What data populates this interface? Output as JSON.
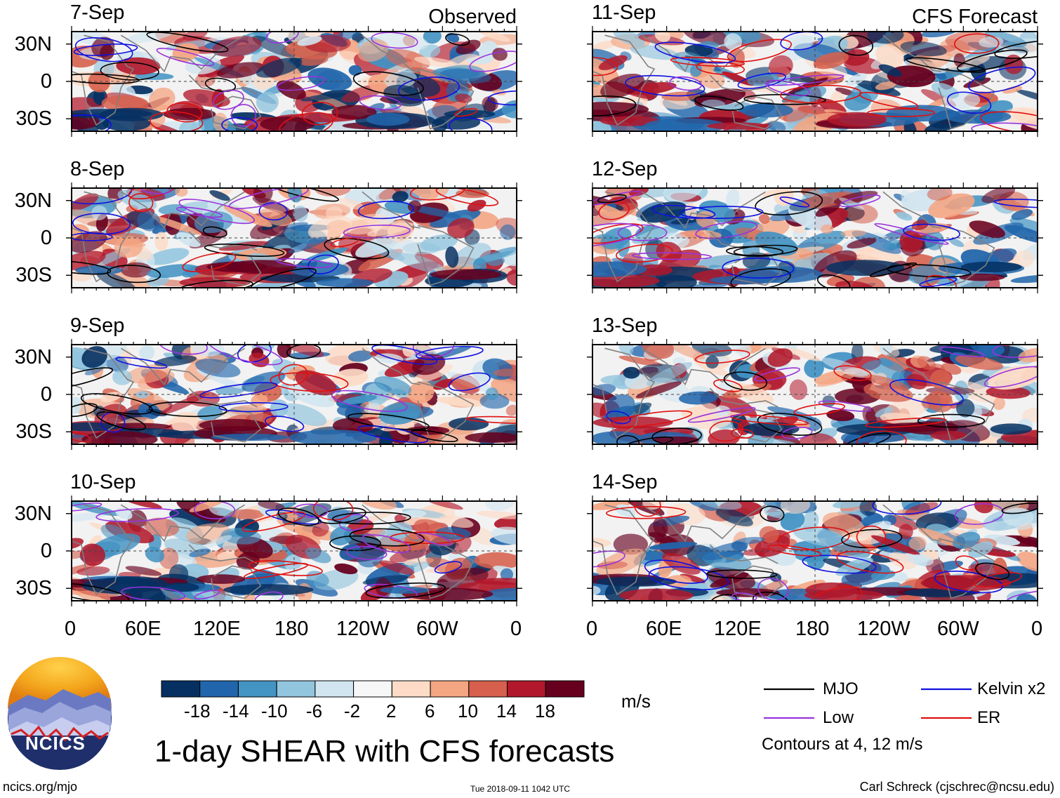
{
  "chart_data": {
    "type": "heatmap",
    "title": "1-day SHEAR with CFS forecasts",
    "variable": "SHEAR",
    "unit_label": "m/s",
    "observed_tag": "Observed",
    "forecast_tag": "CFS Forecast",
    "observed_panels": [
      "7-Sep",
      "8-Sep",
      "9-Sep",
      "10-Sep"
    ],
    "forecast_panels": [
      "11-Sep",
      "12-Sep",
      "13-Sep",
      "14-Sep"
    ],
    "latitude_ticks": [
      "30N",
      "0",
      "30S"
    ],
    "longitude_ticks": [
      "0",
      "60E",
      "120E",
      "180",
      "120W",
      "60W",
      "0"
    ],
    "xlim": [
      0,
      360
    ],
    "ylim": [
      -40,
      40
    ],
    "colorbar": {
      "ticks": [
        "-18",
        "-14",
        "-10",
        "-6",
        "-2",
        "2",
        "6",
        "10",
        "14",
        "18"
      ],
      "colors": [
        "#053061",
        "#2166ac",
        "#4393c3",
        "#92c5de",
        "#d1e5f0",
        "#f7f7f7",
        "#fddbc7",
        "#f4a582",
        "#d6604d",
        "#b2182b",
        "#67001f"
      ]
    },
    "contour_legend": [
      {
        "name": "MJO",
        "color": "#000000"
      },
      {
        "name": "Kelvin x2",
        "color": "#1010e0"
      },
      {
        "name": "Low",
        "color": "#9933dd"
      },
      {
        "name": "ER",
        "color": "#e01010"
      }
    ],
    "contour_note": "Contours at 4, 12 m/s"
  },
  "footer": {
    "logo_text": "NCICS",
    "url": "ncics.org/mjo",
    "timestamp": "Tue 2018-09-11 1042 UTC",
    "author": "Carl Schreck (cjschrec@ncsu.edu)"
  },
  "colors": {
    "land": "#808080"
  }
}
